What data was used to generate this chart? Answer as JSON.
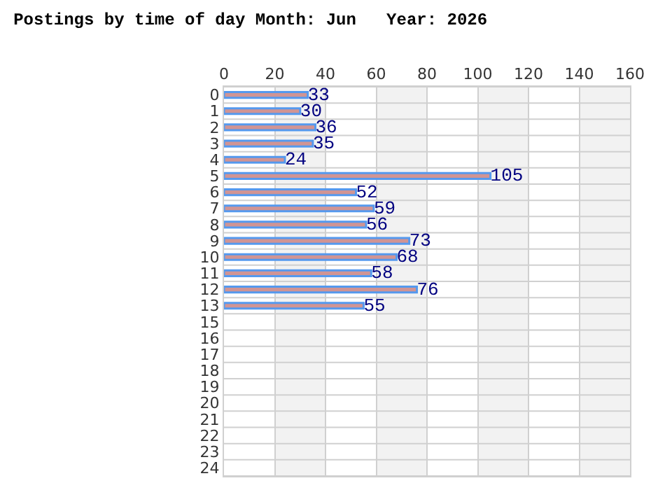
{
  "chart_data": {
    "type": "bar",
    "orientation": "horizontal",
    "title": "Postings by time of day Month: Jun   Year: 2026",
    "categories": [
      "0",
      "1",
      "2",
      "3",
      "4",
      "5",
      "6",
      "7",
      "8",
      "9",
      "10",
      "11",
      "12",
      "13",
      "15",
      "16",
      "17",
      "18",
      "19",
      "20",
      "21",
      "22",
      "23",
      "24"
    ],
    "values": [
      33,
      30,
      36,
      35,
      24,
      105,
      52,
      59,
      56,
      73,
      68,
      58,
      76,
      55,
      null,
      null,
      null,
      null,
      null,
      null,
      null,
      null,
      null,
      null
    ],
    "color": "#d09494",
    "xlim": [
      0,
      160
    ],
    "xticks": [
      0,
      20,
      40,
      60,
      80,
      100,
      120,
      140,
      160
    ],
    "bands": [
      {
        "axis": "x",
        "from": 20,
        "to": 40,
        "color": "#f2f2f2"
      },
      {
        "axis": "x",
        "from": 60,
        "to": 80,
        "color": "#f2f2f2"
      },
      {
        "axis": "x",
        "from": 100,
        "to": 120,
        "color": "#f2f2f2"
      },
      {
        "axis": "x",
        "from": 140,
        "to": 160,
        "color": "#f2f2f2"
      }
    ],
    "grid": true,
    "data_labels": true
  }
}
